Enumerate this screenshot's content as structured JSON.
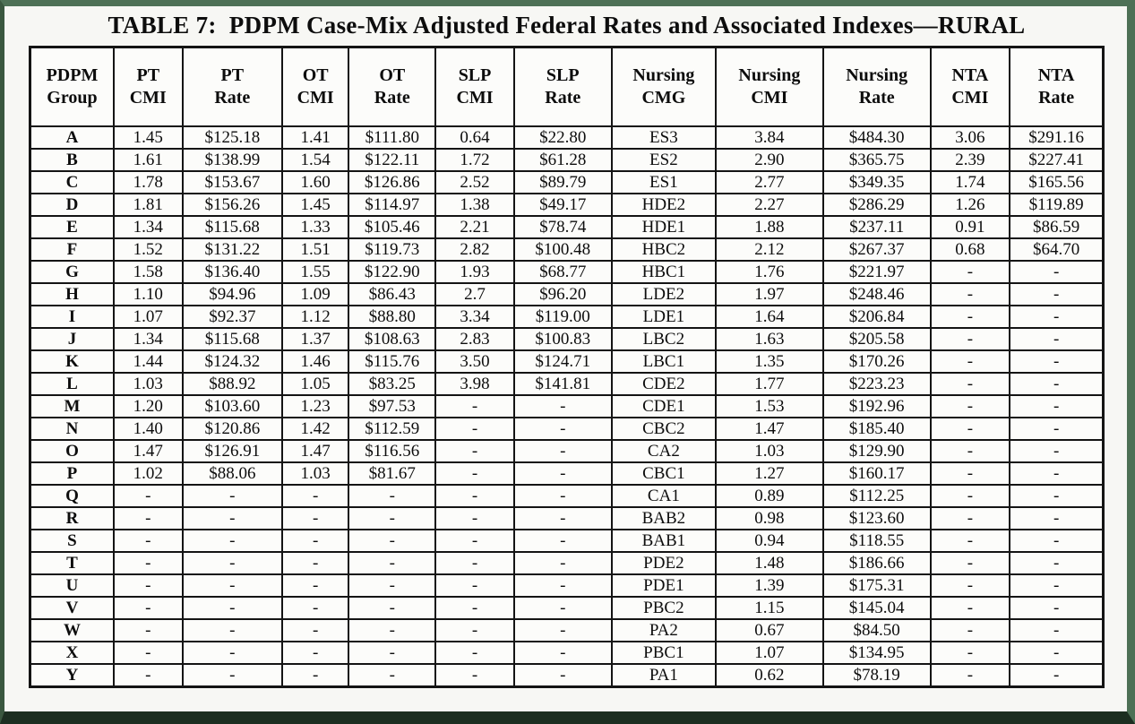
{
  "title": "TABLE 7:  PDPM Case-Mix Adjusted Federal Rates and Associated Indexes—RURAL",
  "table": {
    "column_headers": [
      [
        "PDPM",
        "Group"
      ],
      [
        "PT",
        "CMI"
      ],
      [
        "PT",
        "Rate"
      ],
      [
        "OT",
        "CMI"
      ],
      [
        "OT",
        "Rate"
      ],
      [
        "SLP",
        "CMI"
      ],
      [
        "SLP",
        "Rate"
      ],
      [
        "Nursing",
        "CMG"
      ],
      [
        "Nursing",
        "CMI"
      ],
      [
        "Nursing",
        "Rate"
      ],
      [
        "NTA",
        "CMI"
      ],
      [
        "NTA",
        "Rate"
      ]
    ],
    "rows": [
      [
        "A",
        "1.45",
        "$125.18",
        "1.41",
        "$111.80",
        "0.64",
        "$22.80",
        "ES3",
        "3.84",
        "$484.30",
        "3.06",
        "$291.16"
      ],
      [
        "B",
        "1.61",
        "$138.99",
        "1.54",
        "$122.11",
        "1.72",
        "$61.28",
        "ES2",
        "2.90",
        "$365.75",
        "2.39",
        "$227.41"
      ],
      [
        "C",
        "1.78",
        "$153.67",
        "1.60",
        "$126.86",
        "2.52",
        "$89.79",
        "ES1",
        "2.77",
        "$349.35",
        "1.74",
        "$165.56"
      ],
      [
        "D",
        "1.81",
        "$156.26",
        "1.45",
        "$114.97",
        "1.38",
        "$49.17",
        "HDE2",
        "2.27",
        "$286.29",
        "1.26",
        "$119.89"
      ],
      [
        "E",
        "1.34",
        "$115.68",
        "1.33",
        "$105.46",
        "2.21",
        "$78.74",
        "HDE1",
        "1.88",
        "$237.11",
        "0.91",
        "$86.59"
      ],
      [
        "F",
        "1.52",
        "$131.22",
        "1.51",
        "$119.73",
        "2.82",
        "$100.48",
        "HBC2",
        "2.12",
        "$267.37",
        "0.68",
        "$64.70"
      ],
      [
        "G",
        "1.58",
        "$136.40",
        "1.55",
        "$122.90",
        "1.93",
        "$68.77",
        "HBC1",
        "1.76",
        "$221.97",
        "-",
        "-"
      ],
      [
        "H",
        "1.10",
        "$94.96",
        "1.09",
        "$86.43",
        "2.7",
        "$96.20",
        "LDE2",
        "1.97",
        "$248.46",
        "-",
        "-"
      ],
      [
        "I",
        "1.07",
        "$92.37",
        "1.12",
        "$88.80",
        "3.34",
        "$119.00",
        "LDE1",
        "1.64",
        "$206.84",
        "-",
        "-"
      ],
      [
        "J",
        "1.34",
        "$115.68",
        "1.37",
        "$108.63",
        "2.83",
        "$100.83",
        "LBC2",
        "1.63",
        "$205.58",
        "-",
        "-"
      ],
      [
        "K",
        "1.44",
        "$124.32",
        "1.46",
        "$115.76",
        "3.50",
        "$124.71",
        "LBC1",
        "1.35",
        "$170.26",
        "-",
        "-"
      ],
      [
        "L",
        "1.03",
        "$88.92",
        "1.05",
        "$83.25",
        "3.98",
        "$141.81",
        "CDE2",
        "1.77",
        "$223.23",
        "-",
        "-"
      ],
      [
        "M",
        "1.20",
        "$103.60",
        "1.23",
        "$97.53",
        "-",
        "-",
        "CDE1",
        "1.53",
        "$192.96",
        "-",
        "-"
      ],
      [
        "N",
        "1.40",
        "$120.86",
        "1.42",
        "$112.59",
        "-",
        "-",
        "CBC2",
        "1.47",
        "$185.40",
        "-",
        "-"
      ],
      [
        "O",
        "1.47",
        "$126.91",
        "1.47",
        "$116.56",
        "-",
        "-",
        "CA2",
        "1.03",
        "$129.90",
        "-",
        "-"
      ],
      [
        "P",
        "1.02",
        "$88.06",
        "1.03",
        "$81.67",
        "-",
        "-",
        "CBC1",
        "1.27",
        "$160.17",
        "-",
        "-"
      ],
      [
        "Q",
        "-",
        "-",
        "-",
        "-",
        "-",
        "-",
        "CA1",
        "0.89",
        "$112.25",
        "-",
        "-"
      ],
      [
        "R",
        "-",
        "-",
        "-",
        "-",
        "-",
        "-",
        "BAB2",
        "0.98",
        "$123.60",
        "-",
        "-"
      ],
      [
        "S",
        "-",
        "-",
        "-",
        "-",
        "-",
        "-",
        "BAB1",
        "0.94",
        "$118.55",
        "-",
        "-"
      ],
      [
        "T",
        "-",
        "-",
        "-",
        "-",
        "-",
        "-",
        "PDE2",
        "1.48",
        "$186.66",
        "-",
        "-"
      ],
      [
        "U",
        "-",
        "-",
        "-",
        "-",
        "-",
        "-",
        "PDE1",
        "1.39",
        "$175.31",
        "-",
        "-"
      ],
      [
        "V",
        "-",
        "-",
        "-",
        "-",
        "-",
        "-",
        "PBC2",
        "1.15",
        "$145.04",
        "-",
        "-"
      ],
      [
        "W",
        "-",
        "-",
        "-",
        "-",
        "-",
        "-",
        "PA2",
        "0.67",
        "$84.50",
        "-",
        "-"
      ],
      [
        "X",
        "-",
        "-",
        "-",
        "-",
        "-",
        "-",
        "PBC1",
        "1.07",
        "$134.95",
        "-",
        "-"
      ],
      [
        "Y",
        "-",
        "-",
        "-",
        "-",
        "-",
        "-",
        "PA1",
        "0.62",
        "$78.19",
        "-",
        "-"
      ]
    ]
  },
  "colors": {
    "frame_green": "#4e7156",
    "frame_dark": "#1c2e21",
    "table_border": "#141414",
    "page_background": "#f7f7f4",
    "cell_background": "#fcfcfa",
    "text": "#0d0d0d"
  }
}
